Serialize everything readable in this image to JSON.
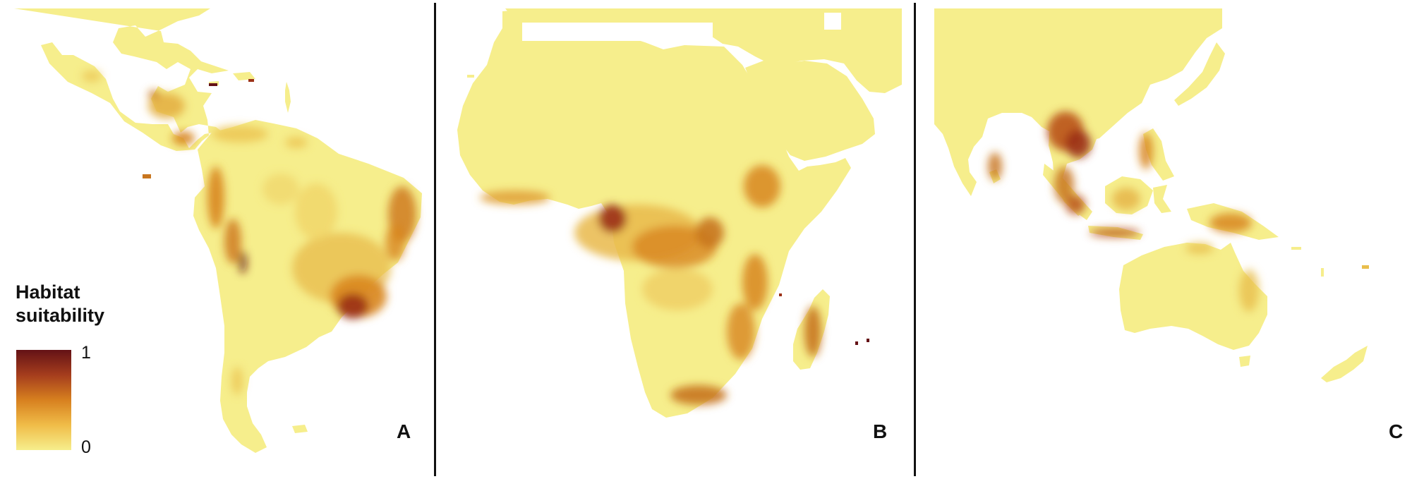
{
  "panels": [
    {
      "label": "A"
    },
    {
      "label": "B"
    },
    {
      "label": "C"
    }
  ],
  "legend": {
    "title_line1": "Habitat",
    "title_line2": "suitability",
    "max": "1",
    "min": "0",
    "colors": [
      "#641216",
      "#a53d1d",
      "#d7801f",
      "#f0bc48",
      "#f6ee8c"
    ]
  },
  "colors": {
    "land": "#f6ee8c",
    "background": "#ffffff",
    "low": "#ecc654",
    "medium": "#d8861f",
    "high": "#9b3117",
    "very_high": "#641216"
  }
}
